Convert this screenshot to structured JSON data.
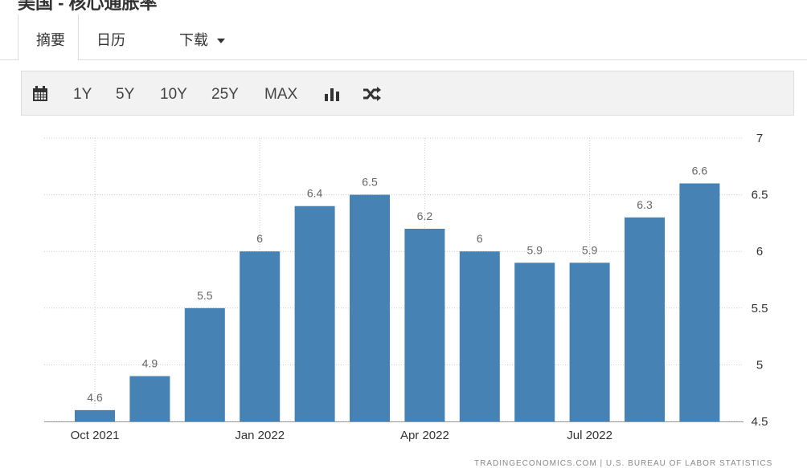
{
  "page": {
    "title": "美国 - 核心通胀率",
    "tabs": [
      "摘要",
      "日历",
      "下载"
    ],
    "ranges": [
      "1Y",
      "5Y",
      "10Y",
      "25Y",
      "MAX"
    ],
    "source": "TRADINGECONOMICS.COM | U.S. BUREAU OF LABOR STATISTICS"
  },
  "chart_data": {
    "type": "bar",
    "categories": [
      "Oct 2021",
      null,
      null,
      "Jan 2022",
      null,
      null,
      "Apr 2022",
      null,
      null,
      "Jul 2022",
      null,
      null
    ],
    "values": [
      4.6,
      4.9,
      5.5,
      6,
      6.4,
      6.5,
      6.2,
      6,
      5.9,
      5.9,
      6.3,
      6.6
    ],
    "color": "#4682b4",
    "ylim": [
      4.5,
      7
    ],
    "yticks": [
      4.5,
      5,
      5.5,
      6,
      6.5,
      7
    ],
    "grid": true,
    "y_axis_side": "right"
  }
}
